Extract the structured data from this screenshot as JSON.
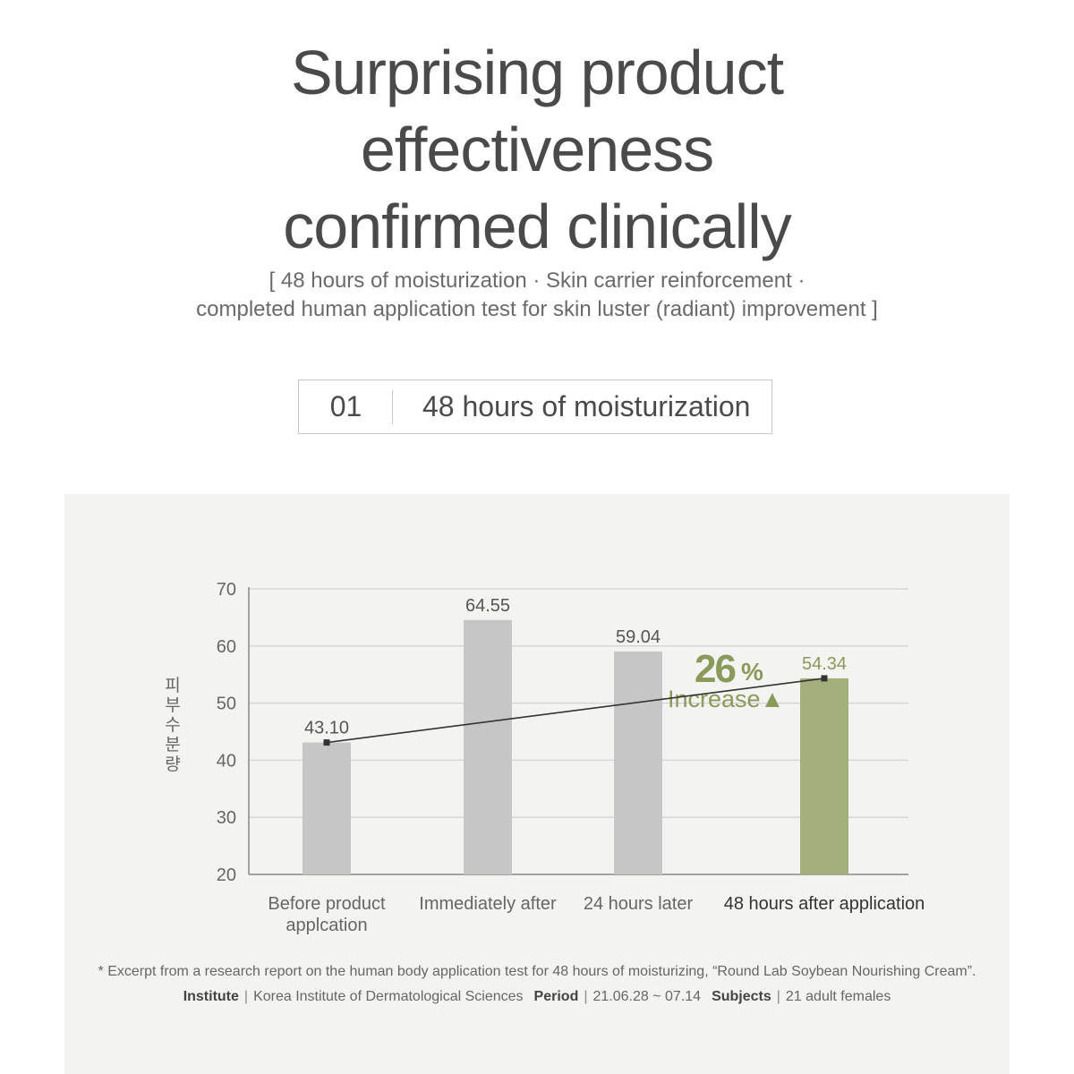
{
  "headline": {
    "line1": "Surprising product",
    "line2": "effectiveness",
    "line3": "confirmed clinically"
  },
  "subhead": {
    "line1": "[ 48 hours of moisturization · Skin carrier reinforcement ·",
    "line2": "completed human application test for skin luster (radiant) improvement ]"
  },
  "section": {
    "number": "01",
    "title": "48 hours of moisturization"
  },
  "colors": {
    "bar_default": "#c6c6c6",
    "bar_highlight": "#a3b07c",
    "accent_text": "#8a9a5b",
    "line": "#333333",
    "grid": "#d6d6d6",
    "panel_bg": "#f3f3f1"
  },
  "chart_data": {
    "type": "bar",
    "ylabel": "피부수분량",
    "ylim": [
      20,
      70
    ],
    "yticks": [
      70,
      60,
      50,
      40,
      30,
      20
    ],
    "grid": true,
    "categories": [
      [
        "Before product",
        "applcation"
      ],
      [
        "Immediately after"
      ],
      [
        "24 hours later"
      ],
      [
        "48 hours after application"
      ]
    ],
    "values": [
      43.1,
      64.55,
      59.04,
      54.34
    ],
    "value_labels": [
      "43.10",
      "64.55",
      "59.04",
      "54.34"
    ],
    "highlight_index": 3,
    "trend_line": {
      "from_index": 0,
      "to_index": 3
    },
    "annotation": {
      "percent": "26",
      "percent_sign": "%",
      "text": "Increase▲"
    }
  },
  "footnote": "* Excerpt from a research report on the human body application test for 48 hours of moisturizing, “Round Lab Soybean Nourishing Cream”.",
  "meta": {
    "institute_label": "Institute",
    "institute_value": "Korea Institute of Dermatological Sciences",
    "period_label": "Period",
    "period_value": "21.06.28 ~ 07.14",
    "subjects_label": "Subjects",
    "subjects_value": "21 adult females",
    "separator": "|"
  }
}
